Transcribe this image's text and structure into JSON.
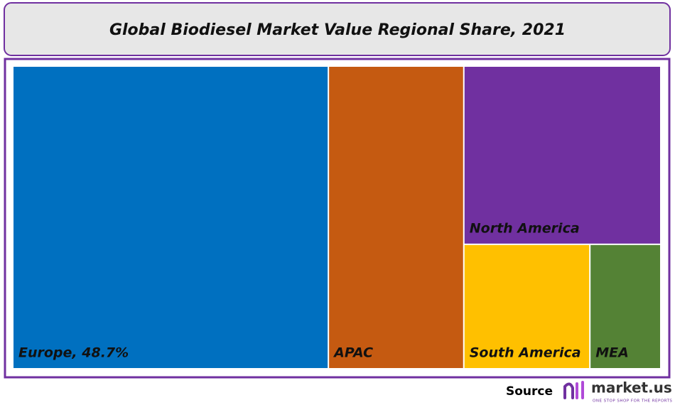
{
  "chart_data": {
    "type": "treemap",
    "title": "Global Biodiesel Market Value Regional Share, 2021",
    "categories": [
      "Europe, 48.7%",
      "APAC",
      "North America",
      "South America",
      "MEA"
    ],
    "values": [
      48.7,
      20.9,
      17.9,
      8.0,
      4.5
    ],
    "colors": [
      "#0070c0",
      "#c55a11",
      "#7030a0",
      "#ffc000",
      "#548235"
    ],
    "source_label": "Source",
    "brand": "market.us",
    "tagline": "ONE STOP SHOP FOR THE REPORTS"
  }
}
